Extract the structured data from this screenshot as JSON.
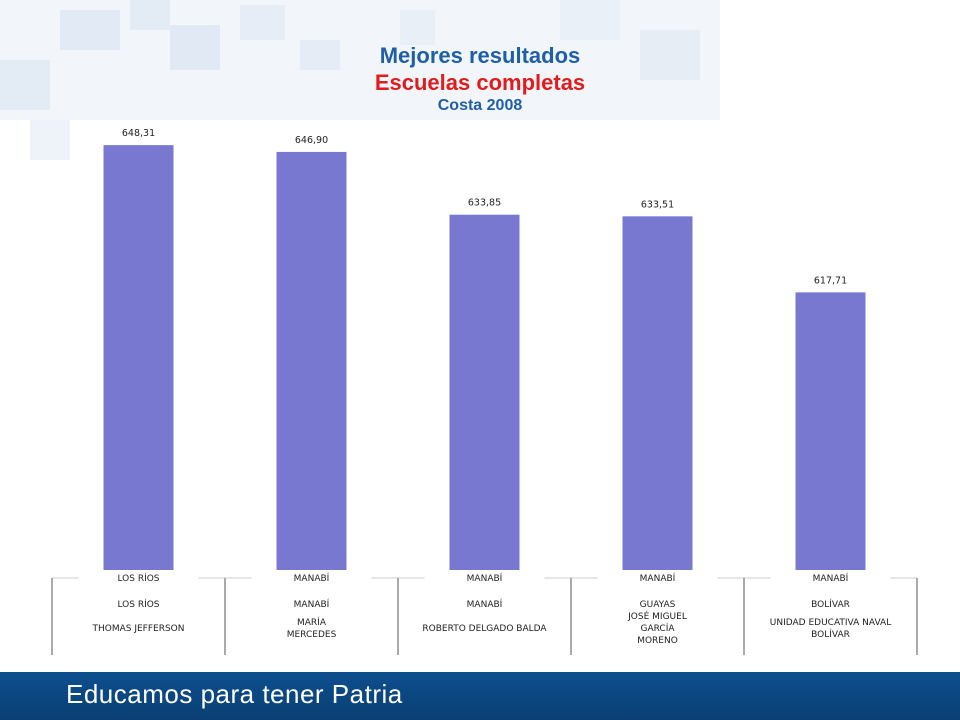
{
  "title": "Mejores resultados",
  "subtitle": "Escuelas completas",
  "subsubtitle": "Costa 2008",
  "footer_text": "Educamos para tener Patria",
  "colors": {
    "bar": "#7878d0",
    "title_blue": "#1f5fa8",
    "title_red": "#e01c1c",
    "footer": "#0c4f8e"
  },
  "chart_data": {
    "type": "bar",
    "categories": [
      {
        "province": "LOS RÍOS",
        "region_header": "LOS RÍOS",
        "school_lines": [
          "THOMAS JEFFERSON"
        ]
      },
      {
        "province": "MANABÍ",
        "region_header": "MANABÍ",
        "school_lines": [
          "MARÍA",
          "MERCEDES"
        ]
      },
      {
        "province": "MANABÍ",
        "region_header": "MANABÍ",
        "school_lines": [
          "ROBERTO DELGADO BALDA"
        ]
      },
      {
        "province": "GUAYAS",
        "region_header": "MANABÍ",
        "school_lines": [
          "JOSÉ MIGUEL",
          "GARCÍA",
          "MORENO"
        ]
      },
      {
        "province": "BOLÍVAR",
        "region_header": "MANABÍ",
        "school_lines": [
          "UNIDAD EDUCATIVA NAVAL",
          "BOLÍVAR"
        ]
      }
    ],
    "values": [
      648.31,
      646.9,
      633.85,
      633.51,
      617.71
    ],
    "value_labels": [
      "648,31",
      "646,90",
      "633,85",
      "633,51",
      "617,71"
    ],
    "ylim": [
      560,
      650
    ],
    "grid": false,
    "legend": "none"
  }
}
